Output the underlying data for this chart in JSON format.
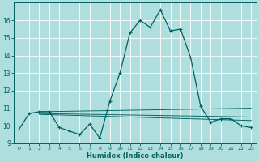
{
  "xlabel": "Humidex (Indice chaleur)",
  "bg_color": "#aedede",
  "grid_color": "#c8eaea",
  "line_color": "#006060",
  "xlim": [
    -0.5,
    23.5
  ],
  "ylim": [
    9,
    17
  ],
  "xticks": [
    0,
    1,
    2,
    3,
    4,
    5,
    6,
    7,
    8,
    9,
    10,
    11,
    12,
    13,
    14,
    15,
    16,
    17,
    18,
    19,
    20,
    21,
    22,
    23
  ],
  "yticks": [
    9,
    10,
    11,
    12,
    13,
    14,
    15,
    16
  ],
  "main_x": [
    0,
    1,
    2,
    3,
    4,
    5,
    6,
    7,
    8,
    9,
    10,
    11,
    12,
    13,
    14,
    15,
    16,
    17,
    18,
    19,
    20,
    21,
    22,
    23
  ],
  "main_y": [
    9.8,
    10.7,
    10.8,
    10.8,
    9.9,
    9.7,
    9.5,
    10.1,
    9.3,
    11.4,
    13.0,
    15.3,
    16.0,
    15.6,
    16.6,
    15.4,
    15.5,
    13.9,
    11.1,
    10.2,
    10.4,
    10.4,
    10.0,
    9.9
  ],
  "flat_lines": [
    {
      "x": [
        2,
        23
      ],
      "y": [
        10.8,
        11.0
      ]
    },
    {
      "x": [
        2,
        23
      ],
      "y": [
        10.75,
        10.75
      ]
    },
    {
      "x": [
        2,
        23
      ],
      "y": [
        10.7,
        10.5
      ]
    },
    {
      "x": [
        2,
        23
      ],
      "y": [
        10.65,
        10.3
      ]
    }
  ]
}
